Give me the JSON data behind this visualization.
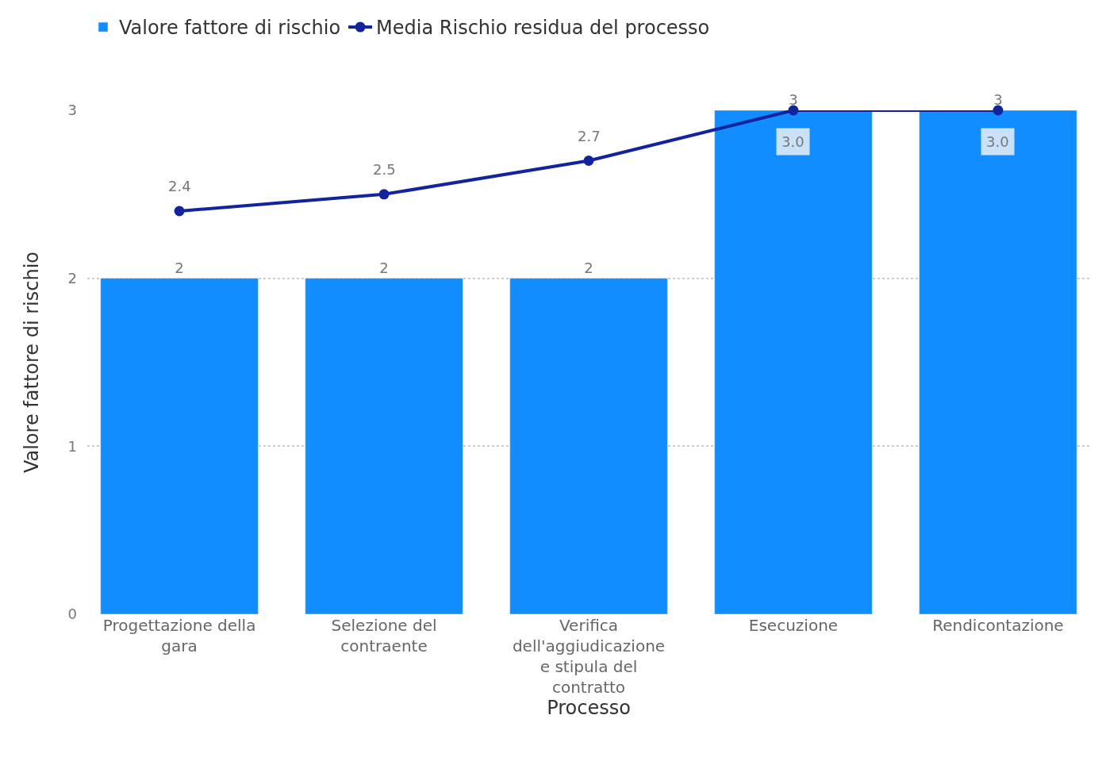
{
  "chart_data": {
    "type": "bar",
    "xlabel": "Processo",
    "ylabel": "Valore fattore di rischio",
    "categories": [
      "Progettazione della gara",
      "Selezione del contraente",
      "Verifica dell'aggiudicazione e stipula del contratto",
      "Esecuzione",
      "Rendicontazione"
    ],
    "series": [
      {
        "name": "Valore fattore di rischio",
        "color": "#118dff",
        "values": [
          2,
          2,
          2,
          3,
          3
        ],
        "value_labels": [
          "2",
          "2",
          "2",
          "3",
          "3"
        ]
      },
      {
        "name": "Media Rischio residua del processo",
        "type": "line",
        "color": "#12239e",
        "values": [
          2.4,
          2.5,
          2.7,
          3,
          3
        ],
        "value_labels": [
          "2.4",
          "2.5",
          "2.7",
          "3.0",
          "3.0"
        ]
      }
    ],
    "ylim": [
      0,
      3
    ],
    "yticks": [
      0,
      1,
      2,
      3
    ],
    "grid": "y",
    "legend": "top left",
    "marker": "circle",
    "line_style": "solid"
  }
}
